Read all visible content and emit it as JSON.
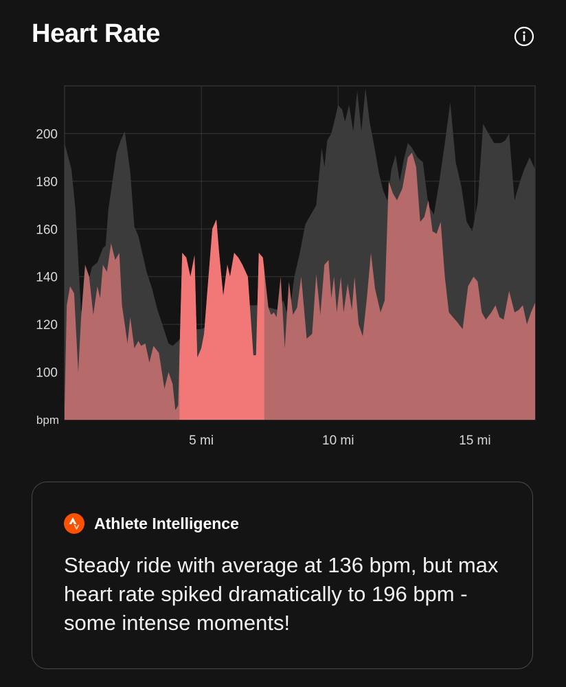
{
  "header": {
    "title": "Heart Rate",
    "info_icon": "info-circle-icon"
  },
  "chart_data": {
    "type": "area",
    "ylabel": "bpm",
    "ylim": [
      80,
      220
    ],
    "xlim": [
      0,
      17.2
    ],
    "y_ticks": [
      "200",
      "180",
      "160",
      "140",
      "120",
      "100"
    ],
    "x_ticks": [
      {
        "value": 5,
        "label": "5 mi"
      },
      {
        "value": 10,
        "label": "10 mi"
      },
      {
        "value": 15,
        "label": "15 mi"
      }
    ],
    "grid": true,
    "colors": {
      "heart_rate": "#b66a6a",
      "highlight": "#f27878",
      "elevation": "#3b3b3b"
    },
    "highlight_range": [
      4.2,
      7.3
    ],
    "series": [
      {
        "id": "elevation",
        "x": [
          0,
          0.25,
          0.4,
          0.6,
          0.75,
          0.85,
          1.0,
          1.2,
          1.4,
          1.5,
          1.6,
          1.75,
          1.9,
          2.05,
          2.2,
          2.4,
          2.55,
          2.7,
          2.8,
          3.0,
          3.2,
          3.4,
          3.6,
          3.8,
          3.95,
          4.15,
          4.3,
          4.45,
          4.6,
          5.0,
          5.4,
          5.8,
          6.2,
          6.6,
          7.0,
          7.5,
          7.8,
          8.0,
          8.1,
          8.2,
          8.4,
          8.6,
          8.8,
          9.0,
          9.2,
          9.4,
          9.5,
          9.6,
          9.75,
          9.9,
          10.0,
          10.15,
          10.25,
          10.4,
          10.55,
          10.7,
          10.85,
          11.0,
          11.15,
          11.3,
          11.5,
          11.65,
          11.8,
          11.95,
          12.1,
          12.25,
          12.4,
          12.55,
          12.7,
          12.9,
          13.1,
          13.3,
          13.5,
          13.7,
          13.9,
          14.1,
          14.3,
          14.5,
          14.7,
          14.9,
          15.1,
          15.3,
          15.5,
          15.7,
          15.95,
          16.1,
          16.25,
          16.45,
          16.65,
          16.8,
          17.0,
          17.2
        ],
        "values": [
          196,
          185,
          168,
          126,
          122,
          137,
          144,
          146,
          152,
          153,
          168,
          180,
          192,
          197,
          201,
          184,
          161,
          157,
          152,
          142,
          135,
          126,
          119,
          112,
          111,
          113,
          115,
          117,
          118,
          118,
          120,
          124,
          126,
          128,
          128,
          127,
          126,
          130,
          126,
          122,
          140,
          150,
          162,
          166,
          170,
          194,
          186,
          197,
          200,
          207,
          212,
          210,
          205,
          212,
          201,
          218,
          201,
          219,
          205,
          196,
          183,
          176,
          172,
          185,
          191,
          180,
          189,
          196,
          194,
          190,
          188,
          170,
          166,
          180,
          196,
          213,
          188,
          178,
          163,
          159,
          171,
          204,
          200,
          196,
          196,
          197,
          200,
          172,
          180,
          185,
          190,
          185
        ]
      },
      {
        "id": "heart_rate",
        "x": [
          0,
          0.08,
          0.2,
          0.35,
          0.5,
          0.6,
          0.75,
          0.9,
          1.05,
          1.2,
          1.3,
          1.4,
          1.55,
          1.7,
          1.85,
          2.0,
          2.1,
          2.2,
          2.3,
          2.4,
          2.55,
          2.7,
          2.8,
          2.95,
          3.1,
          3.25,
          3.45,
          3.65,
          3.8,
          3.95,
          4.05,
          4.15,
          4.3,
          4.45,
          4.6,
          4.75,
          4.85,
          5.0,
          5.1,
          5.2,
          5.4,
          5.55,
          5.65,
          5.8,
          5.95,
          6.05,
          6.2,
          6.35,
          6.5,
          6.7,
          6.9,
          7.0,
          7.1,
          7.25,
          7.45,
          7.55,
          7.65,
          7.75,
          7.9,
          8.05,
          8.2,
          8.35,
          8.5,
          8.65,
          8.85,
          9.05,
          9.2,
          9.35,
          9.5,
          9.65,
          9.75,
          9.85,
          9.95,
          10.1,
          10.2,
          10.35,
          10.5,
          10.6,
          10.75,
          10.9,
          11.05,
          11.2,
          11.35,
          11.55,
          11.7,
          11.85,
          12.0,
          12.15,
          12.35,
          12.55,
          12.7,
          12.85,
          13.0,
          13.15,
          13.3,
          13.45,
          13.6,
          13.75,
          13.9,
          14.05,
          14.2,
          14.35,
          14.55,
          14.75,
          14.95,
          15.1,
          15.25,
          15.4,
          15.6,
          15.75,
          15.9,
          16.05,
          16.25,
          16.45,
          16.6,
          16.75,
          16.9,
          17.05,
          17.2
        ],
        "values": [
          85,
          128,
          136,
          133,
          100,
          122,
          145,
          140,
          124,
          136,
          131,
          145,
          142,
          154,
          147,
          150,
          128,
          120,
          112,
          123,
          110,
          113,
          111,
          112,
          104,
          111,
          108,
          93,
          100,
          95,
          84,
          86,
          150,
          148,
          140,
          149,
          106,
          110,
          116,
          131,
          160,
          164,
          150,
          132,
          145,
          140,
          150,
          148,
          145,
          140,
          107,
          107,
          150,
          148,
          127,
          124,
          125,
          123,
          140,
          110,
          138,
          124,
          127,
          140,
          114,
          116,
          141,
          124,
          145,
          147,
          131,
          140,
          125,
          140,
          125,
          137,
          126,
          140,
          120,
          115,
          131,
          150,
          135,
          125,
          130,
          180,
          175,
          172,
          177,
          190,
          192,
          186,
          163,
          165,
          172,
          159,
          158,
          163,
          140,
          125,
          123,
          121,
          118,
          136,
          140,
          138,
          125,
          122,
          125,
          128,
          123,
          122,
          134,
          125,
          126,
          128,
          120,
          125,
          129
        ]
      }
    ]
  },
  "ai_card": {
    "logo_icon": "strava-logo-icon",
    "title": "Athlete Intelligence",
    "text": "Steady ride with average at 136 bpm, but max heart rate spiked dramatically to 196 bpm - some intense moments!"
  }
}
